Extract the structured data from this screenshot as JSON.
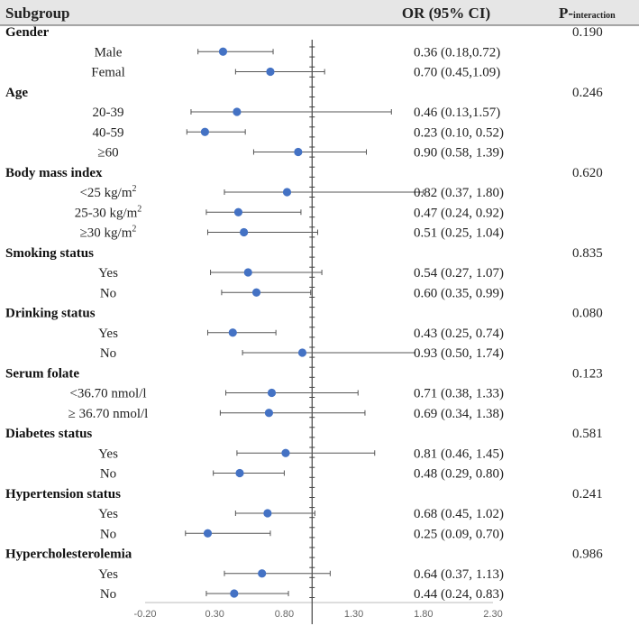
{
  "chart_data": {
    "type": "forest",
    "headers": {
      "subgroup": "Subgroup",
      "or": "OR (95% CI)",
      "p_main": "P-",
      "p_sub": "interaction"
    },
    "x_ticks": [
      "-0.20",
      "0.30",
      "0.80",
      "1.30",
      "1.80",
      "2.30"
    ],
    "x_tick_values": [
      -0.2,
      0.3,
      0.8,
      1.3,
      1.8,
      2.3
    ],
    "xlim": [
      -0.2,
      2.3
    ],
    "reference_line": 1.0,
    "point_color": "#4472C4",
    "groups": [
      {
        "name": "Gender",
        "p": "0.190",
        "rows": [
          {
            "label": "Male",
            "est": 0.36,
            "lo": 0.18,
            "hi": 0.72,
            "text": "0.36 (0.18,0.72)"
          },
          {
            "label": "Femal",
            "est": 0.7,
            "lo": 0.45,
            "hi": 1.09,
            "text": "0.70 (0.45,1.09)"
          }
        ]
      },
      {
        "name": "Age",
        "p": "0.246",
        "rows": [
          {
            "label": "20-39",
            "est": 0.46,
            "lo": 0.13,
            "hi": 1.57,
            "text": "0.46 (0.13,1.57)"
          },
          {
            "label": "40-59",
            "est": 0.23,
            "lo": 0.1,
            "hi": 0.52,
            "text": "0.23 (0.10, 0.52)"
          },
          {
            "label": "≥60",
            "est": 0.9,
            "lo": 0.58,
            "hi": 1.39,
            "text": "0.90 (0.58, 1.39)"
          }
        ]
      },
      {
        "name": "Body mass index",
        "p": "0.620",
        "rows": [
          {
            "label": "<25 kg/m",
            "sup": "2",
            "est": 0.82,
            "lo": 0.37,
            "hi": 1.8,
            "text": "0.82 (0.37, 1.80)"
          },
          {
            "label": "25-30 kg/m",
            "sup": "2",
            "est": 0.47,
            "lo": 0.24,
            "hi": 0.92,
            "text": "0.47 (0.24, 0.92)"
          },
          {
            "label": "≥30 kg/m",
            "sup": "2",
            "est": 0.51,
            "lo": 0.25,
            "hi": 1.04,
            "text": "0.51 (0.25, 1.04)"
          }
        ]
      },
      {
        "name": "Smoking status",
        "p": "0.835",
        "rows": [
          {
            "label": "Yes",
            "est": 0.54,
            "lo": 0.27,
            "hi": 1.07,
            "text": "0.54 (0.27, 1.07)"
          },
          {
            "label": "No",
            "est": 0.6,
            "lo": 0.35,
            "hi": 0.99,
            "text": "0.60 (0.35, 0.99)"
          }
        ]
      },
      {
        "name": "Drinking status",
        "p": "0.080",
        "rows": [
          {
            "label": "Yes",
            "est": 0.43,
            "lo": 0.25,
            "hi": 0.74,
            "text": "0.43 (0.25, 0.74)"
          },
          {
            "label": "No",
            "est": 0.93,
            "lo": 0.5,
            "hi": 1.74,
            "text": "0.93 (0.50, 1.74)"
          }
        ]
      },
      {
        "name": "Serum folate",
        "p": "0.123",
        "rows": [
          {
            "label": "<36.70 nmol/l",
            "est": 0.71,
            "lo": 0.38,
            "hi": 1.33,
            "text": "0.71 (0.38, 1.33)"
          },
          {
            "label": "≥ 36.70 nmol/l",
            "est": 0.69,
            "lo": 0.34,
            "hi": 1.38,
            "text": "0.69 (0.34, 1.38)"
          }
        ]
      },
      {
        "name": "Diabetes status",
        "p": "0.581",
        "rows": [
          {
            "label": "Yes",
            "est": 0.81,
            "lo": 0.46,
            "hi": 1.45,
            "text": "0.81 (0.46, 1.45)"
          },
          {
            "label": "No",
            "est": 0.48,
            "lo": 0.29,
            "hi": 0.8,
            "text": "0.48 (0.29, 0.80)"
          }
        ]
      },
      {
        "name": "Hypertension status",
        "p": "0.241",
        "rows": [
          {
            "label": "Yes",
            "est": 0.68,
            "lo": 0.45,
            "hi": 1.02,
            "text": "0.68 (0.45, 1.02)"
          },
          {
            "label": "No",
            "est": 0.25,
            "lo": 0.09,
            "hi": 0.7,
            "text": "0.25 (0.09, 0.70)"
          }
        ]
      },
      {
        "name": "Hypercholesterolemia",
        "p": "0.986",
        "rows": [
          {
            "label": "Yes",
            "est": 0.64,
            "lo": 0.37,
            "hi": 1.13,
            "text": "0.64 (0.37, 1.13)"
          },
          {
            "label": "No",
            "est": 0.44,
            "lo": 0.24,
            "hi": 0.83,
            "text": "0.44 (0.24, 0.83)"
          }
        ]
      }
    ]
  }
}
